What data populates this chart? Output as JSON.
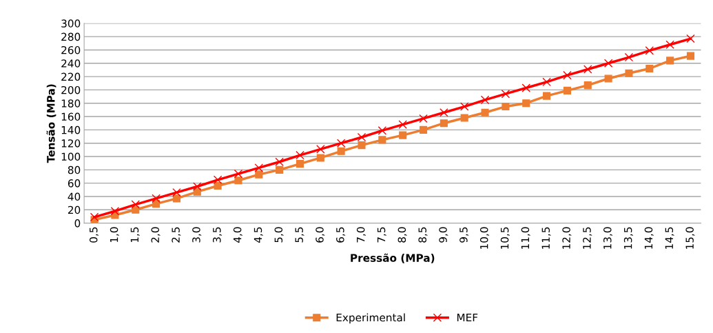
{
  "chart_data": {
    "type": "line",
    "xlabel": "Pressão (MPa)",
    "ylabel": "Tensão (MPa)",
    "categories": [
      "0,5",
      "1,0",
      "1,5",
      "2,0",
      "2,5",
      "3,0",
      "3,5",
      "4,0",
      "4,5",
      "5,0",
      "5,5",
      "6,0",
      "6,5",
      "7,0",
      "7,5",
      "8,0",
      "8,5",
      "9,0",
      "9,5",
      "10,0",
      "10,5",
      "11,0",
      "11,5",
      "12,0",
      "12,5",
      "13,0",
      "13,5",
      "14,0",
      "14,5",
      "15,0"
    ],
    "series": [
      {
        "name": "Experimental",
        "color": "#ed7d31",
        "marker": "square",
        "values": [
          5,
          12,
          20,
          29,
          37,
          47,
          56,
          64,
          73,
          80,
          89,
          98,
          108,
          117,
          125,
          132,
          140,
          150,
          158,
          166,
          175,
          180,
          191,
          199,
          207,
          217,
          225,
          232,
          244,
          251
        ]
      },
      {
        "name": "MEF",
        "color": "#ff0000",
        "marker": "cross",
        "values": [
          9,
          18,
          28,
          37,
          46,
          55,
          65,
          74,
          83,
          92,
          102,
          111,
          120,
          129,
          139,
          148,
          157,
          166,
          175,
          185,
          194,
          203,
          212,
          222,
          231,
          240,
          249,
          259,
          268,
          277
        ]
      }
    ],
    "ylim": [
      0,
      300
    ],
    "yticks": [
      0,
      20,
      40,
      60,
      80,
      100,
      120,
      140,
      160,
      180,
      200,
      220,
      240,
      260,
      280,
      300
    ],
    "grid": "y",
    "legend": "bottom"
  }
}
